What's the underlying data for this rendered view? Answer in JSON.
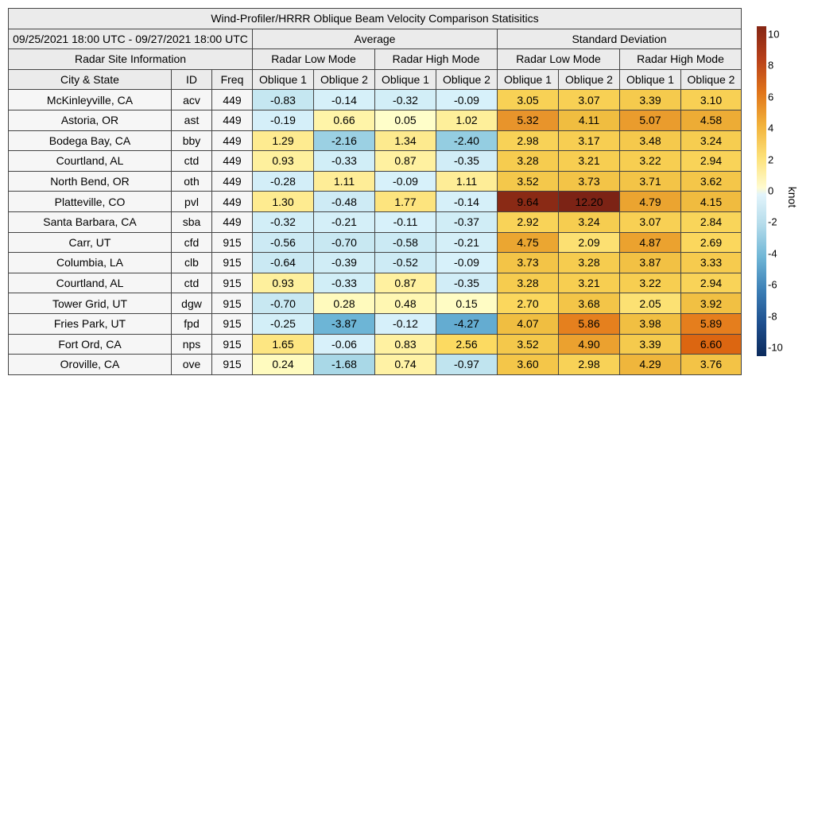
{
  "chart_data": {
    "type": "table",
    "title": "Wind-Profiler/HRRR Oblique Beam Velocity Comparison Statisitics",
    "date_range": "09/25/2021 18:00 UTC - 09/27/2021 18:00 UTC",
    "groups": [
      "Average",
      "Standard Deviation"
    ],
    "info_header": "Radar Site Information",
    "modes": [
      "Radar Low Mode",
      "Radar High Mode",
      "Radar Low Mode",
      "Radar High Mode"
    ],
    "columns": [
      "City & State",
      "ID",
      "Freq",
      "Oblique 1",
      "Oblique 2",
      "Oblique 1",
      "Oblique 2",
      "Oblique 1",
      "Oblique 2",
      "Oblique 1",
      "Oblique 2"
    ],
    "rows": [
      {
        "city": "McKinleyville, CA",
        "id": "acv",
        "freq": "449",
        "values": [
          "-0.83",
          "-0.14",
          "-0.32",
          "-0.09",
          "3.05",
          "3.07",
          "3.39",
          "3.10"
        ]
      },
      {
        "city": "Astoria, OR",
        "id": "ast",
        "freq": "449",
        "values": [
          "-0.19",
          "0.66",
          "0.05",
          "1.02",
          "5.32",
          "4.11",
          "5.07",
          "4.58"
        ]
      },
      {
        "city": "Bodega Bay, CA",
        "id": "bby",
        "freq": "449",
        "values": [
          "1.29",
          "-2.16",
          "1.34",
          "-2.40",
          "2.98",
          "3.17",
          "3.48",
          "3.24"
        ]
      },
      {
        "city": "Courtland, AL",
        "id": "ctd",
        "freq": "449",
        "values": [
          "0.93",
          "-0.33",
          "0.87",
          "-0.35",
          "3.28",
          "3.21",
          "3.22",
          "2.94"
        ]
      },
      {
        "city": "North Bend, OR",
        "id": "oth",
        "freq": "449",
        "values": [
          "-0.28",
          "1.11",
          "-0.09",
          "1.11",
          "3.52",
          "3.73",
          "3.71",
          "3.62"
        ]
      },
      {
        "city": "Platteville, CO",
        "id": "pvl",
        "freq": "449",
        "values": [
          "1.30",
          "-0.48",
          "1.77",
          "-0.14",
          "9.64",
          "12.20",
          "4.79",
          "4.15"
        ]
      },
      {
        "city": "Santa Barbara, CA",
        "id": "sba",
        "freq": "449",
        "values": [
          "-0.32",
          "-0.21",
          "-0.11",
          "-0.37",
          "2.92",
          "3.24",
          "3.07",
          "2.84"
        ]
      },
      {
        "city": "Carr, UT",
        "id": "cfd",
        "freq": "915",
        "values": [
          "-0.56",
          "-0.70",
          "-0.58",
          "-0.21",
          "4.75",
          "2.09",
          "4.87",
          "2.69"
        ]
      },
      {
        "city": "Columbia, LA",
        "id": "clb",
        "freq": "915",
        "values": [
          "-0.64",
          "-0.39",
          "-0.52",
          "-0.09",
          "3.73",
          "3.28",
          "3.87",
          "3.33"
        ]
      },
      {
        "city": "Courtland, AL",
        "id": "ctd",
        "freq": "915",
        "values": [
          "0.93",
          "-0.33",
          "0.87",
          "-0.35",
          "3.28",
          "3.21",
          "3.22",
          "2.94"
        ]
      },
      {
        "city": "Tower Grid, UT",
        "id": "dgw",
        "freq": "915",
        "values": [
          "-0.70",
          "0.28",
          "0.48",
          "0.15",
          "2.70",
          "3.68",
          "2.05",
          "3.92"
        ]
      },
      {
        "city": "Fries Park, UT",
        "id": "fpd",
        "freq": "915",
        "values": [
          "-0.25",
          "-3.87",
          "-0.12",
          "-4.27",
          "4.07",
          "5.86",
          "3.98",
          "5.89"
        ]
      },
      {
        "city": "Fort Ord, CA",
        "id": "nps",
        "freq": "915",
        "values": [
          "1.65",
          "-0.06",
          "0.83",
          "2.56",
          "3.52",
          "4.90",
          "3.39",
          "6.60"
        ]
      },
      {
        "city": "Oroville, CA",
        "id": "ove",
        "freq": "915",
        "values": [
          "0.24",
          "-1.68",
          "0.74",
          "-0.97",
          "3.60",
          "2.98",
          "4.29",
          "3.76"
        ]
      }
    ],
    "colorbar": {
      "label": "knot",
      "range": [
        -10,
        10
      ],
      "ticks": [
        "10",
        "8",
        "6",
        "4",
        "2",
        "0",
        "-2",
        "-4",
        "-6",
        "-8",
        "-10"
      ],
      "stops": [
        [
          -10,
          "#0b2a5c"
        ],
        [
          -8,
          "#1e4f8e"
        ],
        [
          -6,
          "#3c7fb6"
        ],
        [
          -4,
          "#6ab3d5"
        ],
        [
          -2,
          "#9fd3e4"
        ],
        [
          -0.8,
          "#c6e7f1"
        ],
        [
          -0.01,
          "#d9f2fb"
        ],
        [
          0,
          "#ffffcc"
        ],
        [
          0.7,
          "#fff3a6"
        ],
        [
          1.5,
          "#fde888"
        ],
        [
          2.5,
          "#fcdb62"
        ],
        [
          3.3,
          "#f6cc4f"
        ],
        [
          4.1,
          "#f0bd40"
        ],
        [
          4.8,
          "#eba430"
        ],
        [
          5.4,
          "#e8922a"
        ],
        [
          6,
          "#e47a1a"
        ],
        [
          6.6,
          "#dc6611"
        ],
        [
          8,
          "#b24318"
        ],
        [
          9.6,
          "#8a2a15"
        ],
        [
          12.2,
          "#7c2315"
        ]
      ]
    }
  }
}
